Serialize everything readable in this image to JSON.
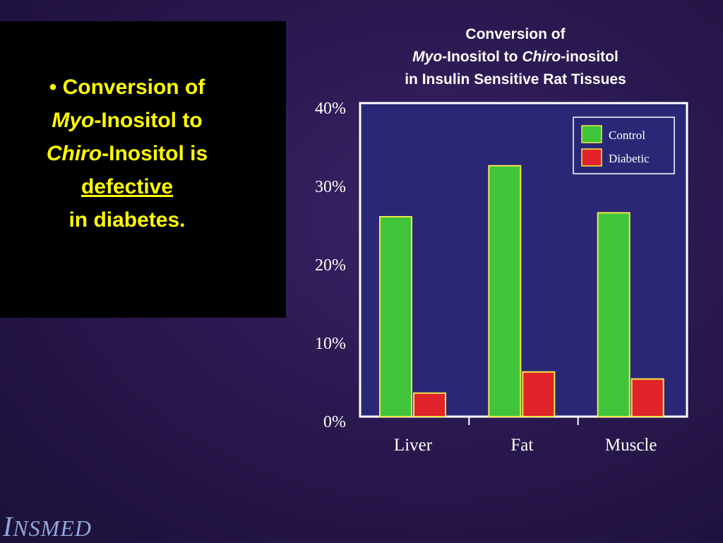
{
  "slide": {
    "bullet": "•",
    "line1": "Conversion of",
    "myo_italic": "Myo",
    "line2_rest": "-Inositol to",
    "chiro_italic": "Chiro",
    "line3_rest": "-Inositol is",
    "defective": "defective",
    "line5": "in diabetes."
  },
  "chart_title": {
    "line1": "Conversion of",
    "myo_italic": "Myo",
    "line2_mid": "-Inositol to ",
    "chiro_italic": "Chiro",
    "line2_end": "-inositol",
    "line3": "in Insulin Sensitive Rat Tissues"
  },
  "logo": {
    "initial": "I",
    "rest": "NSMED"
  },
  "chart_data": {
    "type": "bar",
    "categories": [
      "Liver",
      "Fat",
      "Muscle"
    ],
    "series": [
      {
        "name": "Control",
        "values": [
          25.5,
          32,
          26
        ],
        "color": "#3fc43a"
      },
      {
        "name": "Diabetic",
        "values": [
          3,
          5.7,
          4.8
        ],
        "color": "#e0242a"
      }
    ],
    "yticks": [
      "0%",
      "10%",
      "20%",
      "30%",
      "40%"
    ],
    "ylim": [
      0,
      40
    ],
    "grid": false,
    "legend": "top-right",
    "colors": {
      "control": "#3fc43a",
      "diabetic": "#e0242a",
      "outline": "#f2e84a",
      "axis": "#ffffff",
      "plot_bg": "#2b2777"
    }
  }
}
